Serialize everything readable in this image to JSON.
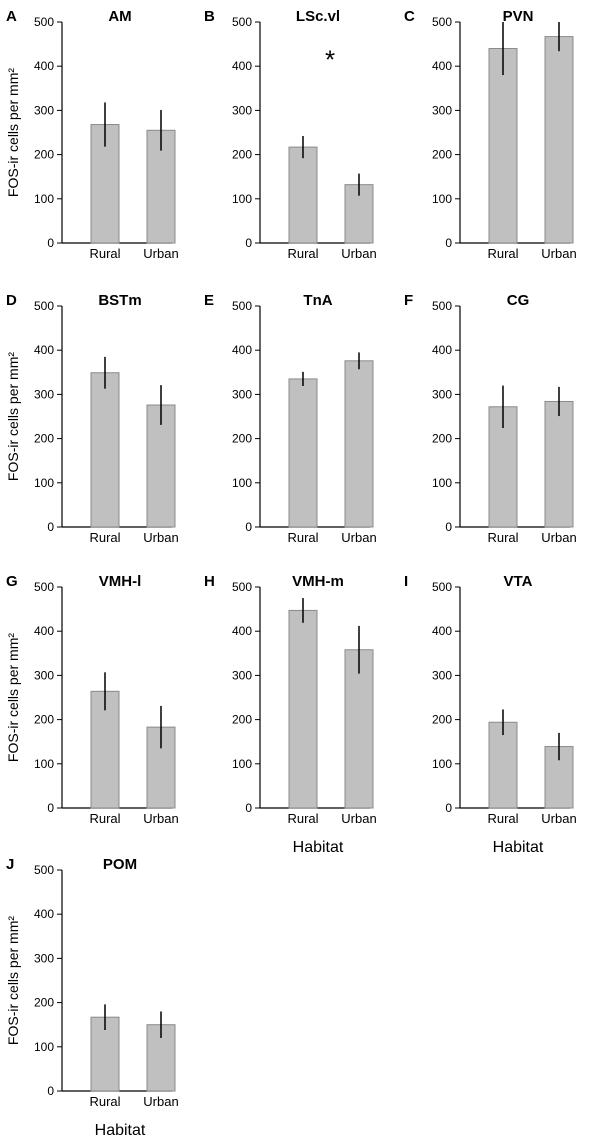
{
  "chart_data": [
    {
      "panel": "A",
      "type": "bar",
      "title": "AM",
      "categories": [
        "Rural",
        "Urban"
      ],
      "values": [
        268,
        255
      ],
      "errors": [
        50,
        46
      ],
      "ylabel": "FOS-ir cells per mm²",
      "xlabel": "",
      "ylim": [
        0,
        500
      ],
      "yticks": [
        0,
        100,
        200,
        300,
        400,
        500
      ],
      "annotation": ""
    },
    {
      "panel": "B",
      "type": "bar",
      "title": "LSc.vl",
      "categories": [
        "Rural",
        "Urban"
      ],
      "values": [
        217,
        132
      ],
      "errors": [
        25,
        25
      ],
      "ylabel": "",
      "xlabel": "",
      "ylim": [
        0,
        500
      ],
      "yticks": [
        0,
        100,
        200,
        300,
        400,
        500
      ],
      "annotation": "*"
    },
    {
      "panel": "C",
      "type": "bar",
      "title": "PVN",
      "categories": [
        "Rural",
        "Urban"
      ],
      "values": [
        440,
        467
      ],
      "errors": [
        60,
        33
      ],
      "ylabel": "",
      "xlabel": "",
      "ylim": [
        0,
        500
      ],
      "yticks": [
        0,
        100,
        200,
        300,
        400,
        500
      ],
      "annotation": ""
    },
    {
      "panel": "D",
      "type": "bar",
      "title": "BSTm",
      "categories": [
        "Rural",
        "Urban"
      ],
      "values": [
        349,
        276
      ],
      "errors": [
        36,
        45
      ],
      "ylabel": "FOS-ir cells per mm²",
      "xlabel": "",
      "ylim": [
        0,
        500
      ],
      "yticks": [
        0,
        100,
        200,
        300,
        400,
        500
      ],
      "annotation": ""
    },
    {
      "panel": "E",
      "type": "bar",
      "title": "TnA",
      "categories": [
        "Rural",
        "Urban"
      ],
      "values": [
        335,
        376
      ],
      "errors": [
        16,
        19
      ],
      "ylabel": "",
      "xlabel": "",
      "ylim": [
        0,
        500
      ],
      "yticks": [
        0,
        100,
        200,
        300,
        400,
        500
      ],
      "annotation": ""
    },
    {
      "panel": "F",
      "type": "bar",
      "title": "CG",
      "categories": [
        "Rural",
        "Urban"
      ],
      "values": [
        272,
        284
      ],
      "errors": [
        48,
        33
      ],
      "ylabel": "",
      "xlabel": "",
      "ylim": [
        0,
        500
      ],
      "yticks": [
        0,
        100,
        200,
        300,
        400,
        500
      ],
      "annotation": ""
    },
    {
      "panel": "G",
      "type": "bar",
      "title": "VMH-l",
      "categories": [
        "Rural",
        "Urban"
      ],
      "values": [
        264,
        183
      ],
      "errors": [
        43,
        48
      ],
      "ylabel": "FOS-ir cells per mm²",
      "xlabel": "",
      "ylim": [
        0,
        500
      ],
      "yticks": [
        0,
        100,
        200,
        300,
        400,
        500
      ],
      "annotation": ""
    },
    {
      "panel": "H",
      "type": "bar",
      "title": "VMH-m",
      "categories": [
        "Rural",
        "Urban"
      ],
      "values": [
        447,
        358
      ],
      "errors": [
        28,
        54
      ],
      "ylabel": "",
      "xlabel": "Habitat",
      "ylim": [
        0,
        500
      ],
      "yticks": [
        0,
        100,
        200,
        300,
        400,
        500
      ],
      "annotation": ""
    },
    {
      "panel": "I",
      "type": "bar",
      "title": "VTA",
      "categories": [
        "Rural",
        "Urban"
      ],
      "values": [
        194,
        139
      ],
      "errors": [
        29,
        31
      ],
      "ylabel": "",
      "xlabel": "Habitat",
      "ylim": [
        0,
        500
      ],
      "yticks": [
        0,
        100,
        200,
        300,
        400,
        500
      ],
      "annotation": ""
    },
    {
      "panel": "J",
      "type": "bar",
      "title": "POM",
      "categories": [
        "Rural",
        "Urban"
      ],
      "values": [
        167,
        150
      ],
      "errors": [
        29,
        30
      ],
      "ylabel": "FOS-ir cells per mm²",
      "xlabel": "Habitat",
      "ylim": [
        0,
        500
      ],
      "yticks": [
        0,
        100,
        200,
        300,
        400,
        500
      ],
      "annotation": ""
    }
  ]
}
